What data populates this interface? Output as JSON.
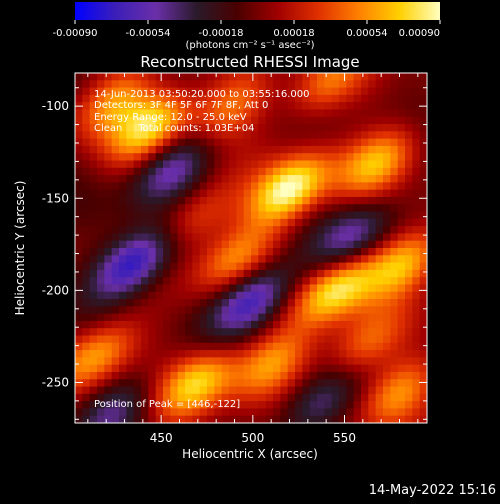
{
  "colors": {
    "background": "#000000",
    "foreground": "#ffffff",
    "colorbar_stops": [
      "#0000ff",
      "#3c1fb8",
      "#6a2fa8",
      "#2a1a2a",
      "#4a0000",
      "#a00000",
      "#e03000",
      "#ff8000",
      "#ffd000",
      "#ffffc0"
    ]
  },
  "colorbar": {
    "ticks": [
      "-0.00090",
      "-0.00054",
      "-0.00018",
      "0.00018",
      "0.00054",
      "0.00090"
    ],
    "tick_values": [
      -0.0009,
      -0.00054,
      -0.00018,
      0.00018,
      0.00054,
      0.0009
    ],
    "range": [
      -0.0009,
      0.0009
    ],
    "unit_text": "(photons cm⁻² s⁻¹ asec⁻²)"
  },
  "chart_data": {
    "type": "heatmap",
    "title": "Reconstructed RHESSI Image",
    "xlabel": "Heliocentric X (arcsec)",
    "ylabel": "Heliocentric Y (arcsec)",
    "xlim": [
      403,
      595
    ],
    "ylim": [
      -272,
      -82
    ],
    "xticks": [
      450,
      500,
      550
    ],
    "yticks": [
      -250,
      -200,
      -150,
      -100
    ],
    "xtick_labels": [
      "450",
      "500",
      "550"
    ],
    "ytick_labels": [
      "-250",
      "-200",
      "-150",
      "-100"
    ],
    "zrange": [
      -0.0009,
      0.0009
    ],
    "sources": [
      {
        "x": 520,
        "y": -145,
        "z": 0.0009
      },
      {
        "x": 445,
        "y": -110,
        "z": 0.00075
      },
      {
        "x": 425,
        "y": -97,
        "z": 0.0005
      },
      {
        "x": 488,
        "y": -100,
        "z": 0.00045
      },
      {
        "x": 568,
        "y": -130,
        "z": 0.0006
      },
      {
        "x": 540,
        "y": -88,
        "z": 0.00045
      },
      {
        "x": 583,
        "y": -185,
        "z": 0.00065
      },
      {
        "x": 545,
        "y": -200,
        "z": 0.0008
      },
      {
        "x": 490,
        "y": -183,
        "z": 0.0005
      },
      {
        "x": 470,
        "y": -160,
        "z": 0.0004
      },
      {
        "x": 415,
        "y": -235,
        "z": 0.0006
      },
      {
        "x": 470,
        "y": -250,
        "z": 0.0007
      },
      {
        "x": 510,
        "y": -240,
        "z": 0.00055
      },
      {
        "x": 560,
        "y": -230,
        "z": 0.00045
      },
      {
        "x": 580,
        "y": -255,
        "z": 0.0005
      },
      {
        "x": 435,
        "y": -185,
        "z": -0.00085
      },
      {
        "x": 500,
        "y": -205,
        "z": -0.00075
      },
      {
        "x": 455,
        "y": -135,
        "z": -0.00055
      },
      {
        "x": 555,
        "y": -170,
        "z": -0.0005
      },
      {
        "x": 425,
        "y": -265,
        "z": -0.0004
      },
      {
        "x": 535,
        "y": -262,
        "z": -0.00045
      }
    ],
    "annotations": {
      "time": "14-Jun-2013 03:50:20.000 to 03:55:16.000",
      "detectors": "Detectors: 3F 4F 5F 6F 7F 8F, Att 0",
      "energy": "Energy Range: 12.0 - 25.0 keV",
      "clean": "Clean     Total counts: 1.03E+04",
      "peak": "Position of Peak = [446,-122]"
    }
  },
  "footer": {
    "date": "14-May-2022 15:16"
  }
}
